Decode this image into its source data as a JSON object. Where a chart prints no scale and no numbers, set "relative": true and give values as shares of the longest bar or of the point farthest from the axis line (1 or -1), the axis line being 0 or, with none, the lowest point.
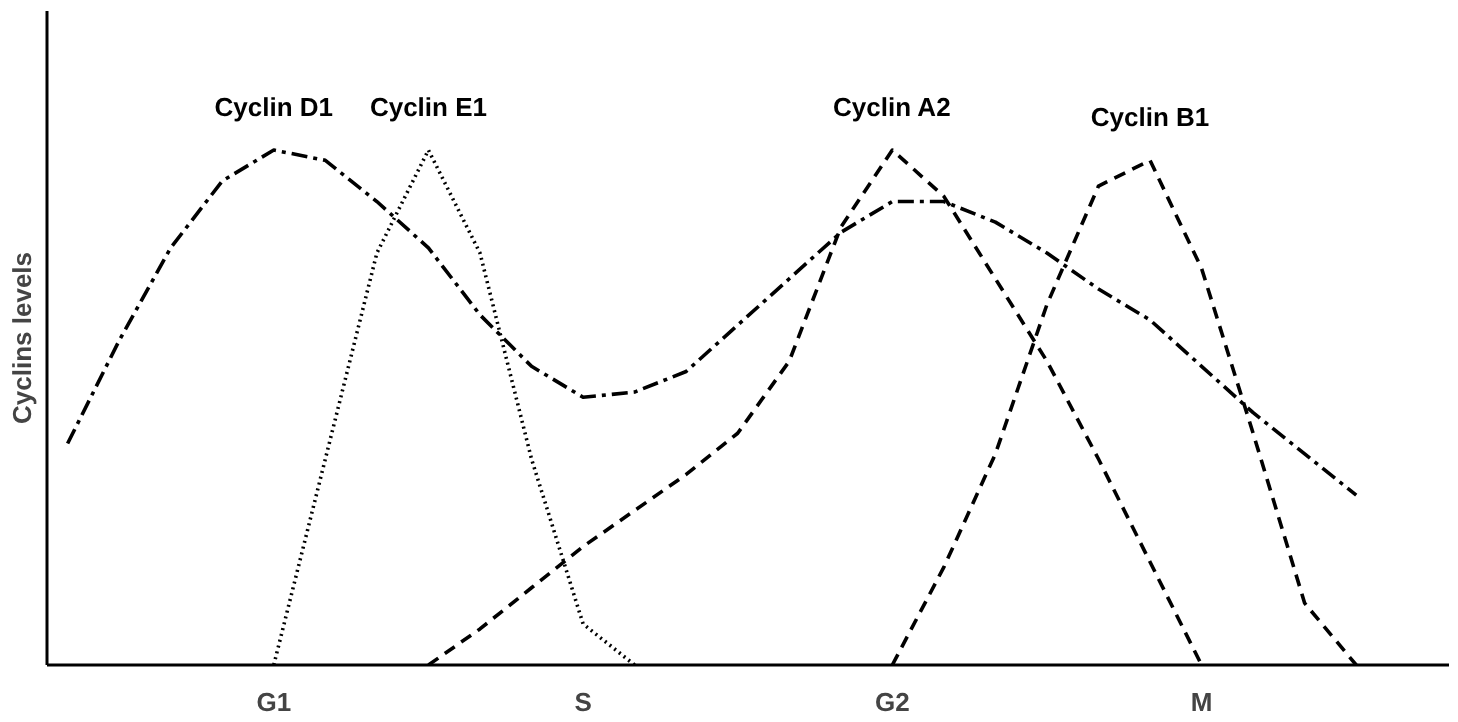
{
  "chart_data": {
    "type": "line",
    "relative": true,
    "ylabel": "Cyclins levels",
    "categories": [
      null,
      null,
      null,
      null,
      "G1",
      null,
      null,
      null,
      null,
      null,
      "S",
      null,
      null,
      null,
      null,
      null,
      "G2",
      null,
      null,
      null,
      null,
      null,
      "M",
      null,
      null,
      null
    ],
    "tick_labels": "x",
    "grid": false,
    "marker": "none",
    "series": [
      {
        "name": "Cyclin D1",
        "color": "#000000",
        "line_style": "dashdot",
        "values": [
          0.43,
          0.63,
          0.81,
          0.94,
          1.0,
          0.98,
          0.9,
          0.81,
          0.68,
          0.58,
          0.52,
          0.53,
          0.57,
          0.66,
          0.75,
          0.84,
          0.9,
          0.9,
          0.86,
          0.8,
          0.73,
          0.67,
          0.58,
          0.49,
          0.41,
          0.33
        ]
      },
      {
        "name": "Cyclin E1",
        "color": "#000000",
        "line_style": "dotted",
        "values": [
          null,
          null,
          null,
          null,
          0,
          0.4,
          0.8,
          1.0,
          0.8,
          0.4,
          0.08,
          0,
          null,
          null,
          null,
          null,
          null,
          null,
          null,
          null,
          null,
          null,
          null,
          null,
          null,
          null
        ]
      },
      {
        "name": "Cyclin A2",
        "color": "#000000",
        "line_style": "dashed",
        "values": [
          null,
          null,
          null,
          null,
          null,
          null,
          null,
          0,
          0.07,
          0.15,
          0.23,
          0.3,
          0.37,
          0.45,
          0.59,
          0.85,
          1.0,
          0.91,
          0.75,
          0.59,
          0.4,
          0.2,
          0,
          null,
          null,
          null
        ]
      },
      {
        "name": "Cyclin B1",
        "color": "#000000",
        "line_style": "dashed",
        "values": [
          null,
          null,
          null,
          null,
          null,
          null,
          null,
          null,
          null,
          null,
          null,
          null,
          null,
          null,
          null,
          null,
          0,
          0.19,
          0.41,
          0.7,
          0.93,
          0.98,
          0.77,
          0.45,
          0.12,
          0
        ]
      }
    ]
  }
}
